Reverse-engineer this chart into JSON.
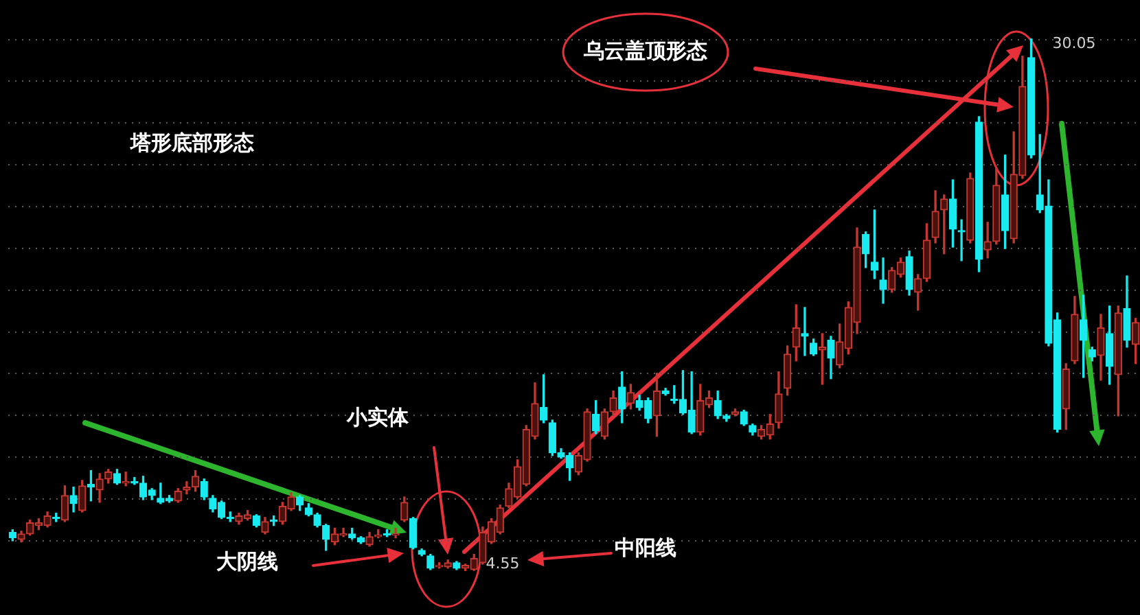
{
  "chart_data": {
    "type": "candlestick",
    "categories": [
      null,
      null,
      null,
      null,
      null,
      null,
      null,
      null,
      null,
      null,
      null,
      null,
      null,
      null,
      null,
      null,
      null,
      null,
      null,
      null,
      null,
      null,
      null,
      null,
      null,
      null,
      null,
      null,
      null,
      null,
      null,
      null,
      null,
      null,
      null,
      null,
      null,
      null,
      null,
      null,
      null,
      null,
      null,
      null,
      null,
      null,
      null,
      null,
      null,
      null,
      null,
      null,
      null,
      null,
      null,
      null,
      null,
      null,
      null,
      null,
      null,
      null,
      null,
      null,
      null,
      null,
      null,
      null,
      null,
      null,
      null,
      null,
      null,
      null,
      null,
      null,
      null,
      null,
      null,
      null,
      null,
      null,
      null,
      null,
      null,
      null,
      null,
      null,
      null,
      null,
      null,
      null,
      null,
      null,
      null,
      null,
      null,
      null,
      null,
      null,
      null,
      null,
      null,
      null,
      null,
      null,
      null,
      null,
      null,
      null,
      null,
      null,
      null,
      null,
      null,
      null,
      null,
      null,
      null,
      null,
      null,
      null,
      null,
      null,
      null,
      null,
      null,
      null,
      null,
      null
    ],
    "ohlc": [
      [
        6.4,
        6.53,
        6.0,
        6.14
      ],
      [
        6.07,
        6.46,
        5.94,
        6.33
      ],
      [
        6.33,
        6.99,
        6.27,
        6.86
      ],
      [
        6.73,
        7.06,
        6.53,
        6.86
      ],
      [
        6.73,
        7.38,
        6.66,
        7.19
      ],
      [
        7.12,
        7.32,
        6.92,
        7.06
      ],
      [
        6.99,
        8.63,
        6.92,
        8.17
      ],
      [
        8.17,
        8.57,
        7.38,
        7.78
      ],
      [
        7.45,
        8.89,
        7.38,
        8.63
      ],
      [
        8.7,
        9.36,
        7.91,
        8.57
      ],
      [
        8.43,
        9.22,
        7.84,
        8.96
      ],
      [
        8.96,
        9.42,
        8.76,
        9.29
      ],
      [
        9.22,
        9.42,
        8.7,
        8.76
      ],
      [
        8.76,
        9.29,
        8.63,
        8.83
      ],
      [
        8.83,
        9.03,
        8.7,
        8.76
      ],
      [
        8.76,
        9.09,
        7.97,
        8.1
      ],
      [
        8.43,
        8.5,
        7.97,
        8.17
      ],
      [
        8.04,
        8.76,
        7.78,
        7.84
      ],
      [
        8.04,
        8.17,
        7.84,
        7.91
      ],
      [
        7.91,
        8.5,
        7.84,
        8.37
      ],
      [
        8.43,
        8.83,
        8.24,
        8.57
      ],
      [
        8.57,
        9.36,
        8.37,
        9.09
      ],
      [
        8.83,
        8.96,
        7.97,
        8.1
      ],
      [
        8.04,
        8.17,
        7.38,
        7.52
      ],
      [
        7.84,
        7.91,
        7.06,
        7.12
      ],
      [
        7.12,
        7.38,
        6.92,
        7.06
      ],
      [
        6.92,
        7.32,
        6.79,
        7.19
      ],
      [
        7.06,
        7.45,
        6.99,
        7.25
      ],
      [
        7.19,
        7.25,
        6.66,
        6.73
      ],
      [
        6.4,
        7.12,
        6.33,
        6.92
      ],
      [
        6.99,
        7.19,
        6.73,
        6.92
      ],
      [
        6.92,
        7.84,
        6.79,
        7.65
      ],
      [
        7.52,
        8.3,
        7.45,
        8.1
      ],
      [
        8.1,
        8.17,
        7.45,
        7.71
      ],
      [
        7.58,
        7.78,
        7.19,
        7.25
      ],
      [
        7.25,
        7.32,
        6.66,
        6.73
      ],
      [
        6.73,
        6.79,
        5.54,
        6.07
      ],
      [
        5.94,
        6.6,
        5.81,
        6.33
      ],
      [
        6.27,
        6.6,
        6.2,
        6.33
      ],
      [
        6.33,
        6.6,
        6.07,
        6.14
      ],
      [
        6.14,
        6.2,
        5.87,
        5.94
      ],
      [
        5.81,
        6.4,
        5.74,
        6.2
      ],
      [
        6.2,
        6.53,
        6.14,
        6.27
      ],
      [
        6.33,
        6.53,
        6.2,
        6.27
      ],
      [
        6.27,
        6.6,
        6.14,
        6.33
      ],
      [
        6.99,
        8.1,
        6.92,
        7.84
      ],
      [
        7.06,
        7.12,
        5.61,
        5.67
      ],
      [
        5.54,
        5.61,
        5.28,
        5.35
      ],
      [
        5.28,
        5.35,
        4.62,
        4.69
      ],
      [
        4.75,
        4.95,
        4.69,
        4.75
      ],
      [
        4.75,
        5.08,
        4.69,
        4.95
      ],
      [
        4.95,
        5.01,
        4.62,
        4.69
      ],
      [
        4.69,
        4.88,
        4.55,
        4.82
      ],
      [
        4.62,
        5.35,
        4.58,
        5.15
      ],
      [
        4.95,
        6.66,
        4.88,
        6.4
      ],
      [
        5.94,
        7.06,
        5.87,
        6.92
      ],
      [
        6.4,
        7.71,
        6.33,
        7.58
      ],
      [
        7.65,
        8.76,
        7.58,
        8.5
      ],
      [
        8.1,
        9.88,
        8.04,
        9.55
      ],
      [
        8.7,
        11.52,
        8.63,
        11.33
      ],
      [
        11.0,
        13.56,
        10.87,
        12.57
      ],
      [
        12.38,
        13.95,
        11.65,
        11.78
      ],
      [
        11.65,
        11.78,
        10.08,
        10.21
      ],
      [
        10.21,
        10.41,
        9.95,
        10.01
      ],
      [
        10.08,
        10.21,
        8.89,
        9.49
      ],
      [
        9.29,
        10.21,
        9.16,
        10.08
      ],
      [
        9.88,
        12.31,
        9.81,
        12.18
      ],
      [
        12.05,
        12.71,
        11.13,
        11.26
      ],
      [
        11.0,
        12.31,
        10.87,
        12.18
      ],
      [
        12.18,
        13.17,
        12.05,
        12.84
      ],
      [
        13.36,
        14.09,
        11.65,
        12.31
      ],
      [
        12.57,
        13.49,
        12.31,
        13.1
      ],
      [
        12.71,
        12.97,
        12.25,
        12.38
      ],
      [
        12.71,
        12.84,
        11.65,
        11.85
      ],
      [
        11.98,
        14.02,
        11.0,
        13.17
      ],
      [
        13.17,
        13.3,
        12.97,
        13.04
      ],
      [
        12.77,
        13.43,
        12.58,
        12.71
      ],
      [
        12.77,
        14.15,
        12.05,
        12.12
      ],
      [
        12.25,
        14.09,
        11.13,
        11.2
      ],
      [
        11.2,
        13.49,
        11.06,
        12.71
      ],
      [
        12.51,
        13.17,
        12.38,
        12.84
      ],
      [
        12.71,
        13.17,
        11.85,
        11.98
      ],
      [
        11.98,
        12.05,
        11.72,
        11.85
      ],
      [
        12.05,
        12.31,
        11.98,
        12.18
      ],
      [
        12.18,
        12.25,
        11.52,
        11.59
      ],
      [
        11.52,
        11.59,
        11.06,
        11.2
      ],
      [
        11.0,
        11.52,
        10.87,
        11.33
      ],
      [
        11.06,
        12.05,
        10.87,
        11.59
      ],
      [
        11.65,
        14.09,
        11.39,
        13.03
      ],
      [
        13.3,
        15.33,
        12.97,
        14.94
      ],
      [
        15.27,
        17.3,
        14.61,
        16.19
      ],
      [
        15.92,
        17.17,
        14.87,
        15.79
      ],
      [
        15.46,
        15.66,
        14.87,
        14.94
      ],
      [
        15.14,
        15.92,
        13.49,
        15.27
      ],
      [
        15.6,
        15.79,
        13.76,
        14.74
      ],
      [
        14.41,
        16.38,
        14.28,
        15.53
      ],
      [
        15.2,
        17.44,
        14.94,
        17.17
      ],
      [
        16.45,
        20.98,
        15.92,
        20.06
      ],
      [
        20.66,
        20.79,
        19.08,
        19.74
      ],
      [
        19.34,
        21.84,
        18.55,
        18.95
      ],
      [
        18.49,
        19.54,
        17.37,
        18.03
      ],
      [
        18.03,
        19.08,
        17.9,
        18.95
      ],
      [
        18.75,
        19.54,
        18.62,
        19.34
      ],
      [
        19.6,
        19.87,
        17.76,
        18.03
      ],
      [
        17.9,
        18.75,
        17.04,
        18.55
      ],
      [
        18.55,
        21.18,
        18.42,
        20.39
      ],
      [
        20.52,
        22.76,
        20.26,
        21.77
      ],
      [
        21.84,
        22.56,
        19.74,
        22.36
      ],
      [
        22.36,
        23.28,
        20.06,
        20.92
      ],
      [
        20.85,
        21.37,
        19.41,
        20.79
      ],
      [
        20.39,
        23.61,
        20.26,
        23.35
      ],
      [
        26.04,
        26.31,
        18.88,
        19.47
      ],
      [
        19.93,
        21.25,
        19.54,
        20.33
      ],
      [
        20.33,
        23.81,
        20.2,
        23.02
      ],
      [
        22.56,
        24.47,
        19.99,
        20.85
      ],
      [
        20.46,
        25.58,
        20.26,
        23.55
      ],
      [
        23.48,
        29.2,
        23.35,
        27.75
      ],
      [
        29.13,
        30.05,
        24.33,
        24.47
      ],
      [
        22.56,
        25.45,
        21.71,
        21.84
      ],
      [
        22.03,
        23.28,
        15.33,
        15.46
      ],
      [
        16.58,
        16.91,
        11.2,
        11.33
      ],
      [
        12.31,
        14.48,
        11.33,
        14.22
      ],
      [
        14.61,
        17.7,
        14.48,
        16.84
      ],
      [
        16.58,
        17.76,
        13.82,
        15.6
      ],
      [
        15.14,
        15.27,
        14.61,
        14.8
      ],
      [
        14.87,
        16.84,
        13.69,
        16.19
      ],
      [
        15.92,
        17.24,
        13.49,
        14.35
      ],
      [
        13.95,
        17.24,
        11.98,
        16.91
      ],
      [
        17.11,
        18.68,
        15.27,
        15.6
      ],
      [
        15.4,
        16.65,
        14.48,
        16.45
      ]
    ],
    "yticks": [
      {
        "value": 6,
        "label": null
      },
      {
        "value": 8,
        "label": null
      },
      {
        "value": 10,
        "label": null
      },
      {
        "value": 12,
        "label": null
      },
      {
        "value": 14,
        "label": null
      },
      {
        "value": 16,
        "label": null
      },
      {
        "value": 18,
        "label": null
      },
      {
        "value": 20,
        "label": null
      },
      {
        "value": 22,
        "label": null
      },
      {
        "value": 24,
        "label": null
      },
      {
        "value": 26,
        "label": null
      },
      {
        "value": 28,
        "label": null
      },
      {
        "value": 30,
        "label": null
      }
    ],
    "grid": "y",
    "annotations": [
      "塔形底部形态",
      "乌云盖顶形态",
      "小实体",
      "大阴线",
      "中阳线",
      "30.05",
      "4.55"
    ]
  }
}
